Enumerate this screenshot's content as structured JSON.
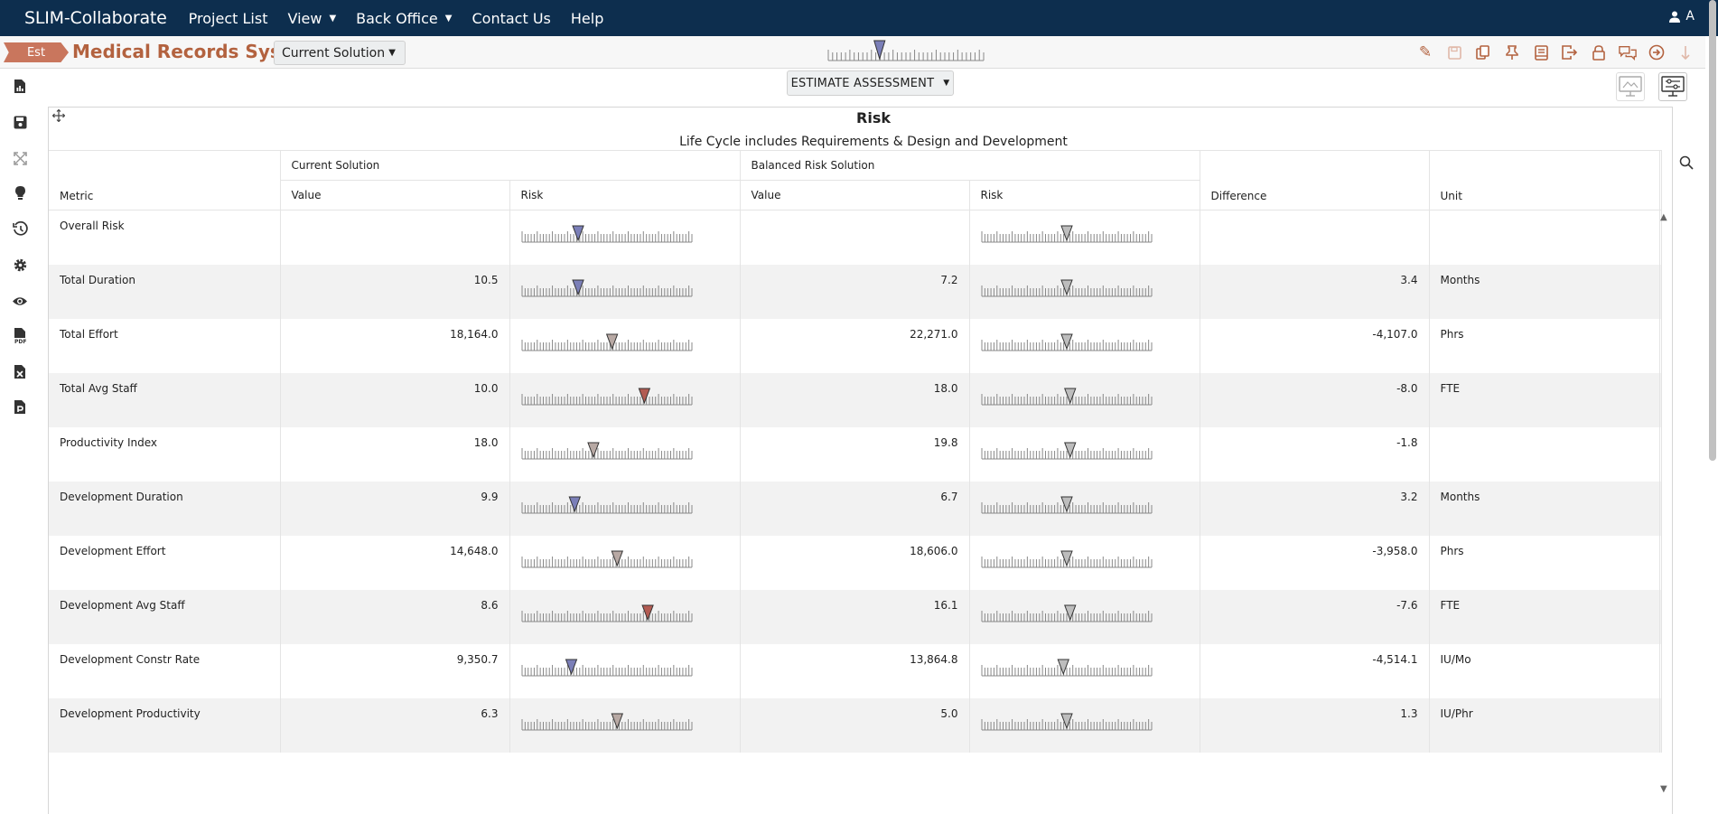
{
  "nav": {
    "brand": "SLIM-Collaborate",
    "items": [
      {
        "label": "Project List",
        "caret": false
      },
      {
        "label": "View",
        "caret": true
      },
      {
        "label": "Back Office",
        "caret": true
      },
      {
        "label": "Contact Us",
        "caret": false
      },
      {
        "label": "Help",
        "caret": false
      }
    ],
    "user": "A"
  },
  "project": {
    "tag": "Est",
    "title": "Medical Records System",
    "solution": "Current Solution",
    "overall_gauge_level": 0.33
  },
  "toolbar": [
    "edit-icon",
    "save-icon",
    "copy-icon",
    "pin-icon",
    "book-icon",
    "export-icon",
    "lock-icon",
    "chat-icon",
    "forward-icon",
    "download-icon"
  ],
  "sidebar": [
    "chart-icon",
    "save-icon",
    "expand-icon",
    "bulb-icon",
    "history-icon",
    "settings-icon",
    "eye-icon",
    "pdf-icon",
    "excel-icon",
    "ppt-icon"
  ],
  "content": {
    "assess_label": "ESTIMATE ASSESSMENT"
  },
  "panel": {
    "title": "Risk",
    "subtitle": "Life Cycle includes Requirements & Design and Development"
  },
  "table": {
    "group_headers": {
      "current": "Current Solution",
      "balanced": "Balanced Risk Solution"
    },
    "headers": {
      "metric": "Metric",
      "value": "Value",
      "risk": "Risk",
      "difference": "Difference",
      "unit": "Unit"
    },
    "colors": {
      "low": "#7b7fb8",
      "neutral": "#b8a9a4",
      "high": "#b25b52"
    },
    "rows": [
      {
        "metric": "Overall Risk",
        "cur_value": "",
        "cur_risk": 0.33,
        "cur_color": "low",
        "bal_value": "",
        "bal_risk": 0.5,
        "bal_color": "neutral_gray",
        "diff": "",
        "unit": ""
      },
      {
        "metric": "Total Duration",
        "cur_value": "10.5",
        "cur_risk": 0.33,
        "cur_color": "low",
        "bal_value": "7.2",
        "bal_risk": 0.5,
        "bal_color": "neutral_gray",
        "diff": "3.4",
        "unit": "Months"
      },
      {
        "metric": "Total Effort",
        "cur_value": "18,164.0",
        "cur_risk": 0.53,
        "cur_color": "neutral",
        "bal_value": "22,271.0",
        "bal_risk": 0.5,
        "bal_color": "neutral_gray",
        "diff": "-4,107.0",
        "unit": "Phrs"
      },
      {
        "metric": "Total Avg Staff",
        "cur_value": "10.0",
        "cur_risk": 0.72,
        "cur_color": "high",
        "bal_value": "18.0",
        "bal_risk": 0.52,
        "bal_color": "neutral_gray",
        "diff": "-8.0",
        "unit": "FTE"
      },
      {
        "metric": "Productivity Index",
        "cur_value": "18.0",
        "cur_risk": 0.42,
        "cur_color": "neutral",
        "bal_value": "19.8",
        "bal_risk": 0.52,
        "bal_color": "neutral_gray",
        "diff": "-1.8",
        "unit": ""
      },
      {
        "metric": "Development Duration",
        "cur_value": "9.9",
        "cur_risk": 0.31,
        "cur_color": "low",
        "bal_value": "6.7",
        "bal_risk": 0.5,
        "bal_color": "neutral_gray",
        "diff": "3.2",
        "unit": "Months"
      },
      {
        "metric": "Development Effort",
        "cur_value": "14,648.0",
        "cur_risk": 0.56,
        "cur_color": "neutral",
        "bal_value": "18,606.0",
        "bal_risk": 0.5,
        "bal_color": "neutral_gray",
        "diff": "-3,958.0",
        "unit": "Phrs"
      },
      {
        "metric": "Development Avg Staff",
        "cur_value": "8.6",
        "cur_risk": 0.74,
        "cur_color": "high",
        "bal_value": "16.1",
        "bal_risk": 0.52,
        "bal_color": "neutral_gray",
        "diff": "-7.6",
        "unit": "FTE"
      },
      {
        "metric": "Development Constr Rate",
        "cur_value": "9,350.7",
        "cur_risk": 0.29,
        "cur_color": "low",
        "bal_value": "13,864.8",
        "bal_risk": 0.48,
        "bal_color": "neutral_gray",
        "diff": "-4,514.1",
        "unit": "IU/Mo"
      },
      {
        "metric": "Development Productivity",
        "cur_value": "6.3",
        "cur_risk": 0.56,
        "cur_color": "neutral",
        "bal_value": "5.0",
        "bal_risk": 0.5,
        "bal_color": "neutral_gray",
        "diff": "1.3",
        "unit": "IU/Phr"
      }
    ]
  }
}
